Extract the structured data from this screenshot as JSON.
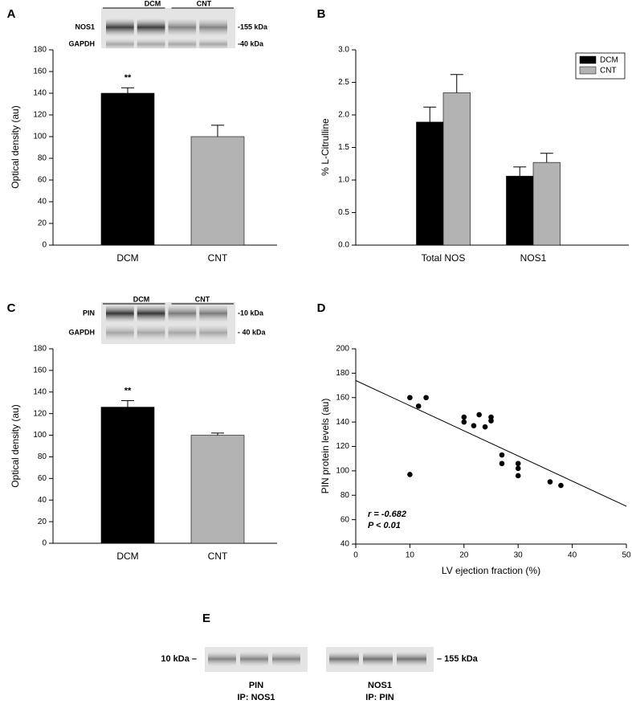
{
  "chart_data": [
    {
      "type": "bar",
      "panel": "A",
      "ylabel": "Optical density (au)",
      "blot": {
        "rows": [
          "NOS1",
          "GAPDH"
        ],
        "groups": [
          "DCM",
          "CNT"
        ],
        "markers": [
          "-155 kDa",
          "-40 kDa"
        ]
      },
      "categories": [
        "DCM",
        "CNT"
      ],
      "values": [
        140,
        100
      ],
      "errors": [
        5,
        10.5
      ],
      "colors": [
        "#000000",
        "#b3b3b3"
      ],
      "significance": {
        "category": "DCM",
        "label": "**"
      },
      "ylim": [
        0,
        180
      ],
      "yticks": [
        0,
        20,
        40,
        60,
        80,
        100,
        120,
        140,
        160,
        180
      ]
    },
    {
      "type": "grouped_bar",
      "panel": "B",
      "ylabel": "% L-Citrulline",
      "categories": [
        "Total NOS",
        "NOS1"
      ],
      "series": [
        {
          "name": "DCM",
          "color": "#000000",
          "values": [
            1.89,
            1.06
          ],
          "errors": [
            0.23,
            0.14
          ]
        },
        {
          "name": "CNT",
          "color": "#b3b3b3",
          "values": [
            2.34,
            1.27
          ],
          "errors": [
            0.28,
            0.14
          ]
        }
      ],
      "legend": "top-right",
      "ylim": [
        0,
        3
      ],
      "yticks": [
        {
          "value": 0,
          "label": "0.0"
        },
        {
          "value": 0.5,
          "label": "0.5"
        },
        {
          "value": 1,
          "label": "1.0"
        },
        {
          "value": 1.5,
          "label": "1.5"
        },
        {
          "value": 2,
          "label": "2.0"
        },
        {
          "value": 2.5,
          "label": "2.5"
        },
        {
          "value": 3,
          "label": "3.0"
        }
      ]
    },
    {
      "type": "bar",
      "panel": "C",
      "ylabel": "Optical density (au)",
      "blot": {
        "rows": [
          "PIN",
          "GAPDH"
        ],
        "groups": [
          "DCM",
          "CNT"
        ],
        "markers": [
          "-10 kDa",
          "- 40 kDa"
        ]
      },
      "categories": [
        "DCM",
        "CNT"
      ],
      "values": [
        126,
        100
      ],
      "errors": [
        6,
        2
      ],
      "colors": [
        "#000000",
        "#b3b3b3"
      ],
      "significance": {
        "category": "DCM",
        "label": "**"
      },
      "ylim": [
        0,
        180
      ],
      "yticks": [
        0,
        20,
        40,
        60,
        80,
        100,
        120,
        140,
        160,
        180
      ]
    },
    {
      "type": "scatter",
      "panel": "D",
      "xlabel": "LV ejection fraction (%)",
      "ylabel": "PIN protein levels (au)",
      "x": [
        10,
        11.6,
        13,
        10,
        20,
        20,
        21.8,
        22.8,
        23.9,
        25,
        25,
        27,
        27,
        30,
        30,
        30,
        35.9,
        37.9
      ],
      "values": [
        160,
        153,
        160,
        97,
        144,
        140,
        137,
        146,
        136,
        144,
        141,
        113,
        106,
        106,
        102,
        96,
        91,
        88
      ],
      "color": "#000000",
      "fit": {
        "x": [
          0,
          50
        ],
        "y": [
          174,
          71
        ]
      },
      "annotations": [
        "r = -0.682",
        "P < 0.01"
      ],
      "xlim": [
        0,
        50
      ],
      "xticks": [
        0,
        10,
        20,
        30,
        40,
        50
      ],
      "ylim": [
        40,
        200
      ],
      "yticks": [
        40,
        60,
        80,
        100,
        120,
        140,
        160,
        180,
        200
      ]
    }
  ],
  "panel_e": {
    "panel": "E",
    "left_marker": "10 kDa –",
    "right_marker": "– 155 kDa",
    "lanes": [
      {
        "protein": "PIN",
        "ip": "IP: NOS1"
      },
      {
        "protein": "NOS1",
        "ip": "IP: PIN"
      }
    ]
  }
}
